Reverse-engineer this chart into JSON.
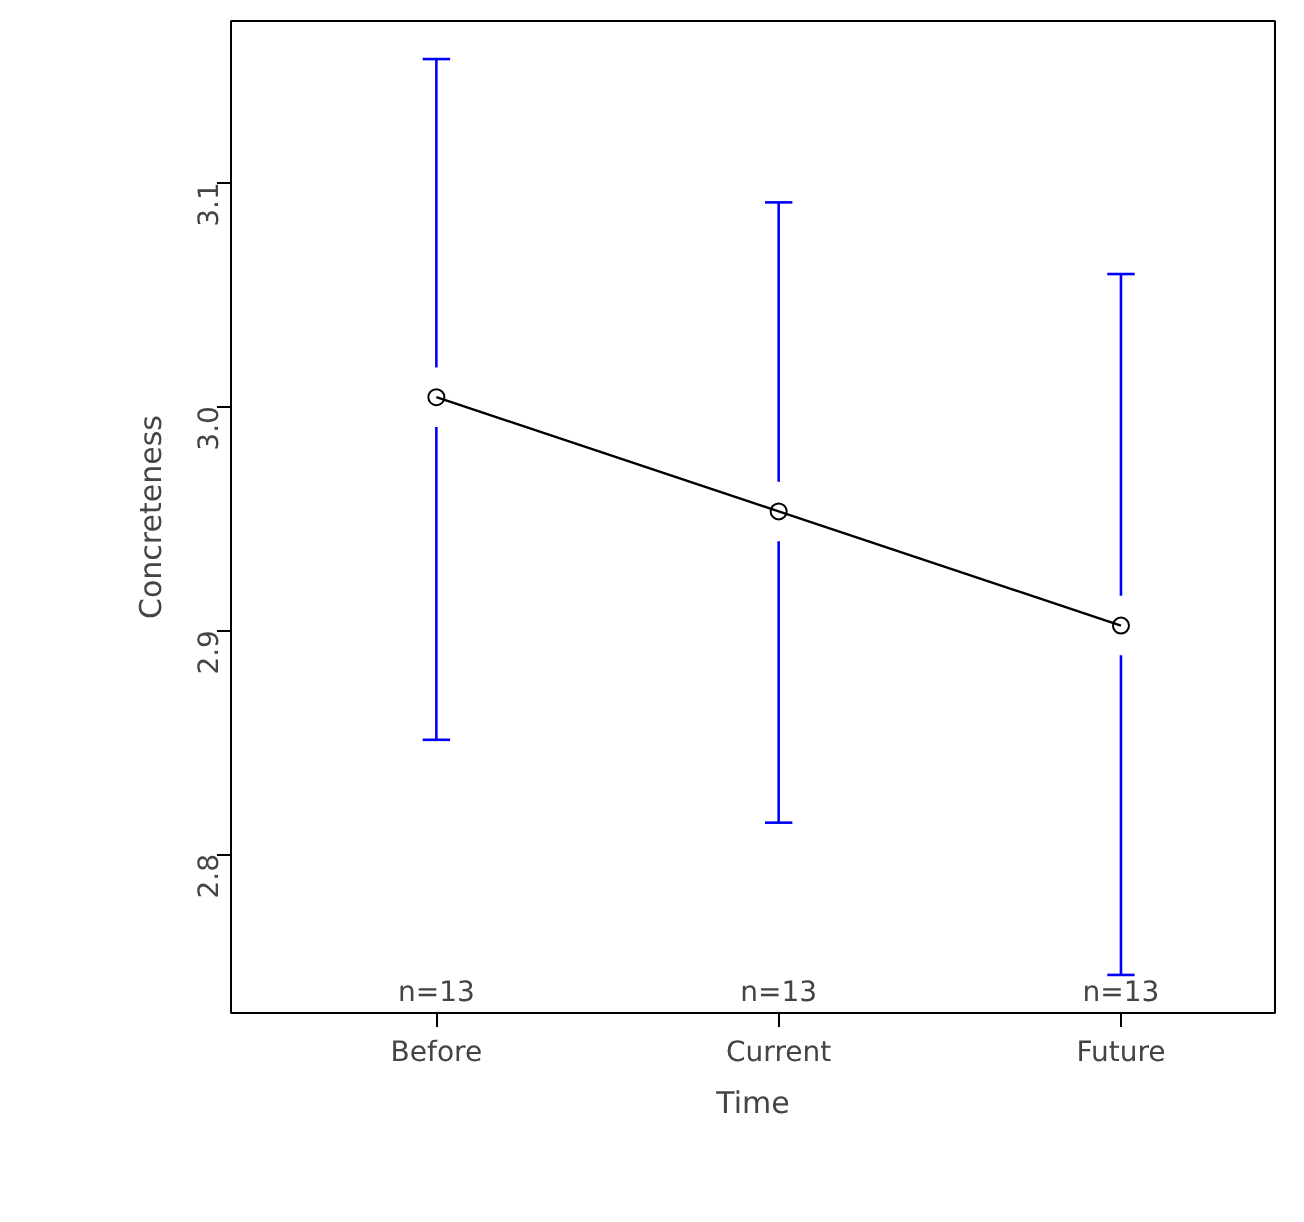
{
  "chart_data": {
    "type": "line",
    "xlabel": "Time",
    "ylabel": "Concreteness",
    "categories": [
      "Before",
      "Current",
      "Future"
    ],
    "values": [
      3.004,
      2.953,
      2.902
    ],
    "color": "#000000",
    "errors": [
      [
        2.851,
        3.155
      ],
      [
        2.814,
        3.091
      ],
      [
        2.746,
        3.059
      ]
    ],
    "annotations": [
      "n=13",
      "n=13",
      "n=13"
    ],
    "ylim": [
      2.729,
      3.172
    ],
    "yticks": [
      2.8,
      2.9,
      {
        "value": 3.0,
        "label": "3.0"
      },
      3.1
    ],
    "marker": "circle",
    "line_style": "solid",
    "grid": false
  }
}
